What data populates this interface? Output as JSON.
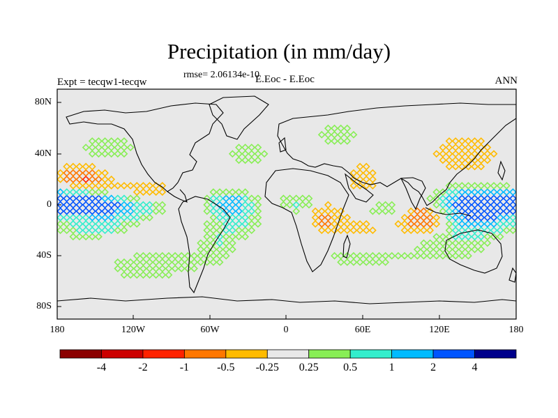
{
  "title": "Precipitation (in mm/day)",
  "rmse": "rmse= 2.06134e-10",
  "expt": "Expt = tecqw1-tecqw",
  "case": "E.Eoc - E.Eoc",
  "season": "ANN",
  "lat_labels": [
    "80N",
    "40N",
    "0",
    "40S",
    "80S"
  ],
  "lon_labels": [
    "180",
    "120W",
    "60W",
    "0",
    "60E",
    "120E",
    "180"
  ],
  "colorbar": {
    "colors": [
      "#8b0000",
      "#cc0000",
      "#ff2200",
      "#ff7700",
      "#ffbb00",
      "#e8e8e8",
      "#88ee55",
      "#33eecc",
      "#00bbff",
      "#0055ff",
      "#00008b"
    ],
    "labels": [
      "-4",
      "-2",
      "-1",
      "-0.5",
      "-0.25",
      "0.25",
      "0.5",
      "1",
      "2",
      "4"
    ]
  },
  "colors": {
    "land": "#e8e8e8",
    "coast": "#000000"
  }
}
